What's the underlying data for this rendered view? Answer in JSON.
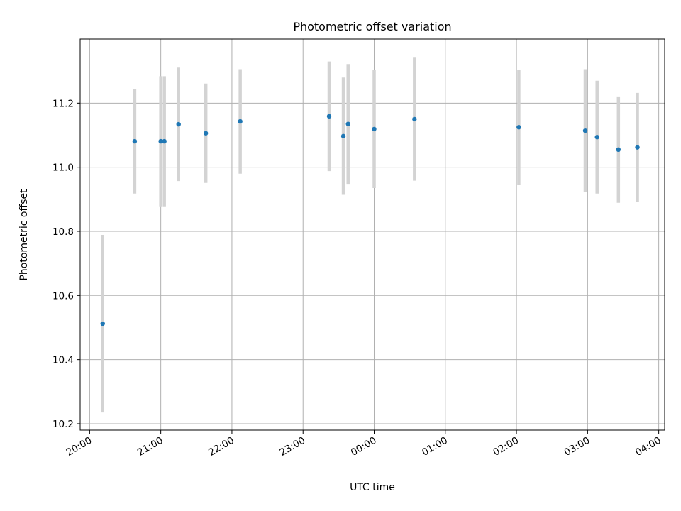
{
  "chart_data": {
    "type": "scatter",
    "title": "Photometric offset variation",
    "xlabel": "UTC time",
    "ylabel": "Photometric offset",
    "x_axis_type": "time",
    "x_range": [
      "19:52",
      "04:05"
    ],
    "ylim": [
      10.18,
      11.4
    ],
    "x_ticks": [
      "20:00",
      "21:00",
      "22:00",
      "23:00",
      "00:00",
      "01:00",
      "02:00",
      "03:00",
      "04:00"
    ],
    "y_ticks": [
      10.2,
      10.4,
      10.6,
      10.8,
      11.0,
      11.2
    ],
    "y_tick_labels": [
      "10.2",
      "10.4",
      "10.6",
      "10.8",
      "11.0",
      "11.2"
    ],
    "grid": true,
    "colors": {
      "points": "#1f77b4",
      "error_bars": "#d3d3d3",
      "grid": "#b0b0b0"
    },
    "series": [
      {
        "points": [
          {
            "time": "20:11",
            "y": 10.512,
            "err": 0.277
          },
          {
            "time": "20:38",
            "y": 11.081,
            "err": 0.163
          },
          {
            "time": "21:00",
            "y": 11.081,
            "err": 0.203
          },
          {
            "time": "21:03",
            "y": 11.081,
            "err": 0.203
          },
          {
            "time": "21:15",
            "y": 11.134,
            "err": 0.177
          },
          {
            "time": "21:38",
            "y": 11.106,
            "err": 0.155
          },
          {
            "time": "22:07",
            "y": 11.143,
            "err": 0.163
          },
          {
            "time": "23:22",
            "y": 11.159,
            "err": 0.171
          },
          {
            "time": "23:34",
            "y": 11.097,
            "err": 0.183
          },
          {
            "time": "23:38",
            "y": 11.135,
            "err": 0.187
          },
          {
            "time": "00:00",
            "y": 11.119,
            "err": 0.184
          },
          {
            "time": "00:34",
            "y": 11.15,
            "err": 0.192
          },
          {
            "time": "02:02",
            "y": 11.125,
            "err": 0.179
          },
          {
            "time": "02:58",
            "y": 11.114,
            "err": 0.192
          },
          {
            "time": "03:08",
            "y": 11.094,
            "err": 0.176
          },
          {
            "time": "03:26",
            "y": 11.055,
            "err": 0.166
          },
          {
            "time": "03:42",
            "y": 11.062,
            "err": 0.17
          }
        ]
      }
    ]
  }
}
